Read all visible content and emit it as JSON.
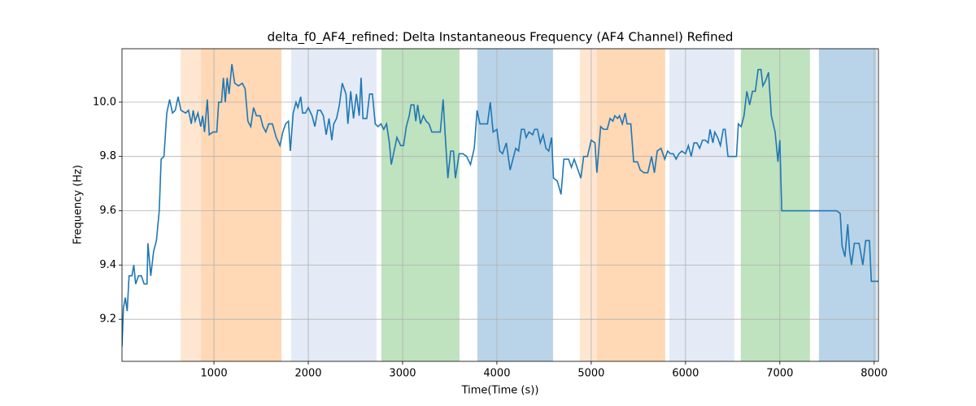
{
  "chart_data": {
    "type": "line",
    "title": "delta_f0_AF4_refined: Delta Instantaneous Frequency (AF4 Channel) Refined",
    "xlabel": "Time(Time (s))",
    "ylabel": "Frequency (Hz)",
    "color": "#1f77b4",
    "grid": true,
    "xlim": [
      25,
      8045
    ],
    "ylim": [
      9.045,
      10.197
    ],
    "xticks": [
      1000,
      2000,
      3000,
      4000,
      5000,
      6000,
      7000,
      8000
    ],
    "yticks": [
      9.2,
      9.4,
      9.6,
      9.8,
      {
        "value": 10,
        "label": "10.0"
      }
    ],
    "spans": [
      {
        "start": 647,
        "end": 862,
        "color": "#ffe6d0"
      },
      {
        "start": 862,
        "end": 1716,
        "color": "#ffd8b5"
      },
      {
        "start": 1819,
        "end": 2724,
        "color": "#e4ebf6"
      },
      {
        "start": 2776,
        "end": 3603,
        "color": "#bfe2bf"
      },
      {
        "start": 3793,
        "end": 4595,
        "color": "#b9d4e8"
      },
      {
        "start": 4879,
        "end": 5060,
        "color": "#ffe6d0"
      },
      {
        "start": 5060,
        "end": 5784,
        "color": "#ffd8b5"
      },
      {
        "start": 5828,
        "end": 6517,
        "color": "#e4ebf6"
      },
      {
        "start": 6586,
        "end": 7319,
        "color": "#bfe2bf"
      },
      {
        "start": 7414,
        "end": 8026,
        "color": "#b9d4e8"
      }
    ],
    "x": [
      25,
      40,
      60,
      80,
      100,
      130,
      150,
      170,
      200,
      230,
      260,
      290,
      300,
      330,
      360,
      390,
      420,
      440,
      470,
      500,
      530,
      560,
      590,
      620,
      650,
      700,
      730,
      760,
      780,
      800,
      830,
      860,
      880,
      900,
      930,
      950,
      990,
      1030,
      1050,
      1080,
      1100,
      1120,
      1140,
      1160,
      1190,
      1220,
      1260,
      1300,
      1330,
      1360,
      1390,
      1420,
      1450,
      1490,
      1520,
      1550,
      1580,
      1620,
      1660,
      1700,
      1730,
      1760,
      1790,
      1810,
      1840,
      1870,
      1890,
      1920,
      1940,
      1970,
      2000,
      2040,
      2070,
      2100,
      2130,
      2160,
      2190,
      2220,
      2250,
      2270,
      2300,
      2330,
      2360,
      2400,
      2420,
      2450,
      2480,
      2510,
      2540,
      2560,
      2580,
      2620,
      2650,
      2680,
      2710,
      2740,
      2770,
      2800,
      2830,
      2860,
      2880,
      2910,
      2940,
      2980,
      3010,
      3040,
      3070,
      3090,
      3120,
      3140,
      3160,
      3190,
      3220,
      3250,
      3280,
      3310,
      3350,
      3400,
      3430,
      3450,
      3480,
      3510,
      3540,
      3560,
      3600,
      3640,
      3680,
      3720,
      3760,
      3790,
      3820,
      3860,
      3900,
      3930,
      3960,
      4000,
      4030,
      4060,
      4100,
      4140,
      4170,
      4200,
      4230,
      4260,
      4290,
      4310,
      4340,
      4380,
      4400,
      4430,
      4460,
      4490,
      4520,
      4550,
      4580,
      4600,
      4640,
      4680,
      4710,
      4760,
      4790,
      4820,
      4860,
      4890,
      4920,
      4960,
      5000,
      5040,
      5060,
      5100,
      5130,
      5170,
      5200,
      5230,
      5250,
      5280,
      5300,
      5330,
      5360,
      5380,
      5420,
      5450,
      5490,
      5520,
      5560,
      5600,
      5640,
      5670,
      5700,
      5740,
      5780,
      5810,
      5840,
      5870,
      5900,
      5930,
      5960,
      6000,
      6030,
      6060,
      6090,
      6120,
      6150,
      6180,
      6210,
      6240,
      6260,
      6290,
      6310,
      6340,
      6370,
      6400,
      6420,
      6450,
      6480,
      6510,
      6540,
      6560,
      6590,
      6620,
      6650,
      6680,
      6710,
      6740,
      6770,
      6800,
      6820,
      6850,
      6880,
      6910,
      6950,
      6980,
      7000,
      7020,
      7100,
      7300,
      7400,
      7500,
      7600,
      7640,
      7660,
      7690,
      7720,
      7740,
      7760,
      7790,
      7840,
      7860,
      7880,
      7910,
      7950,
      7970,
      8045
    ],
    "values": [
      9.1,
      9.24,
      9.28,
      9.23,
      9.36,
      9.36,
      9.4,
      9.33,
      9.36,
      9.36,
      9.33,
      9.33,
      9.48,
      9.36,
      9.45,
      9.49,
      9.6,
      9.79,
      9.8,
      9.96,
      10.01,
      9.96,
      9.97,
      10.02,
      9.97,
      9.96,
      9.97,
      9.92,
      9.97,
      9.93,
      9.96,
      9.91,
      9.95,
      9.89,
      10.01,
      9.88,
      9.89,
      9.89,
      10.0,
      10.0,
      10.09,
      10.0,
      10.09,
      10.03,
      10.14,
      10.07,
      10.06,
      10.07,
      10.05,
      9.93,
      9.91,
      9.98,
      9.95,
      9.95,
      9.91,
      9.89,
      9.92,
      9.92,
      9.87,
      9.84,
      9.89,
      9.92,
      9.93,
      9.82,
      9.96,
      10.0,
      9.98,
      10.02,
      9.96,
      9.96,
      9.98,
      9.95,
      9.91,
      9.97,
      9.97,
      9.95,
      9.88,
      9.94,
      9.86,
      9.92,
      9.94,
      9.99,
      10.07,
      10.03,
      9.92,
      10.04,
      9.94,
      10.03,
      9.95,
      10.09,
      9.94,
      9.94,
      10.03,
      10.03,
      9.92,
      9.91,
      9.92,
      9.9,
      9.92,
      9.85,
      9.77,
      9.82,
      9.87,
      9.84,
      9.84,
      9.91,
      9.95,
      9.99,
      9.99,
      9.93,
      9.99,
      9.92,
      9.95,
      9.93,
      9.92,
      9.89,
      9.89,
      9.89,
      10.01,
      9.89,
      9.72,
      9.82,
      9.82,
      9.72,
      9.81,
      9.81,
      9.8,
      9.77,
      9.83,
      9.97,
      9.92,
      9.92,
      9.92,
      10.0,
      9.89,
      9.9,
      9.82,
      9.81,
      9.85,
      9.75,
      9.79,
      9.83,
      9.82,
      9.9,
      9.9,
      9.87,
      9.89,
      9.88,
      9.9,
      9.9,
      9.85,
      9.88,
      9.83,
      9.82,
      9.87,
      9.72,
      9.71,
      9.66,
      9.79,
      9.79,
      9.76,
      9.79,
      9.75,
      9.72,
      9.8,
      9.8,
      9.86,
      9.85,
      9.74,
      9.91,
      9.9,
      9.9,
      9.94,
      9.93,
      9.95,
      9.94,
      9.95,
      9.92,
      9.96,
      9.92,
      9.92,
      9.78,
      9.78,
      9.75,
      9.74,
      9.74,
      9.8,
      9.74,
      9.82,
      9.83,
      9.79,
      9.82,
      9.81,
      9.81,
      9.79,
      9.81,
      9.82,
      9.81,
      9.84,
      9.8,
      9.85,
      9.85,
      9.83,
      9.86,
      9.86,
      9.85,
      9.9,
      9.85,
      9.89,
      9.87,
      9.84,
      9.9,
      9.9,
      9.8,
      9.8,
      9.8,
      9.8,
      9.92,
      9.91,
      9.95,
      10.04,
      9.99,
      10.04,
      10.04,
      10.12,
      10.12,
      10.06,
      10.08,
      10.11,
      9.95,
      9.89,
      9.78,
      9.86,
      9.6,
      9.6,
      9.6,
      9.6,
      9.6,
      9.6,
      9.59,
      9.47,
      9.43,
      9.55,
      9.45,
      9.4,
      9.48,
      9.48,
      9.44,
      9.4,
      9.49,
      9.49,
      9.34,
      9.34
    ]
  }
}
